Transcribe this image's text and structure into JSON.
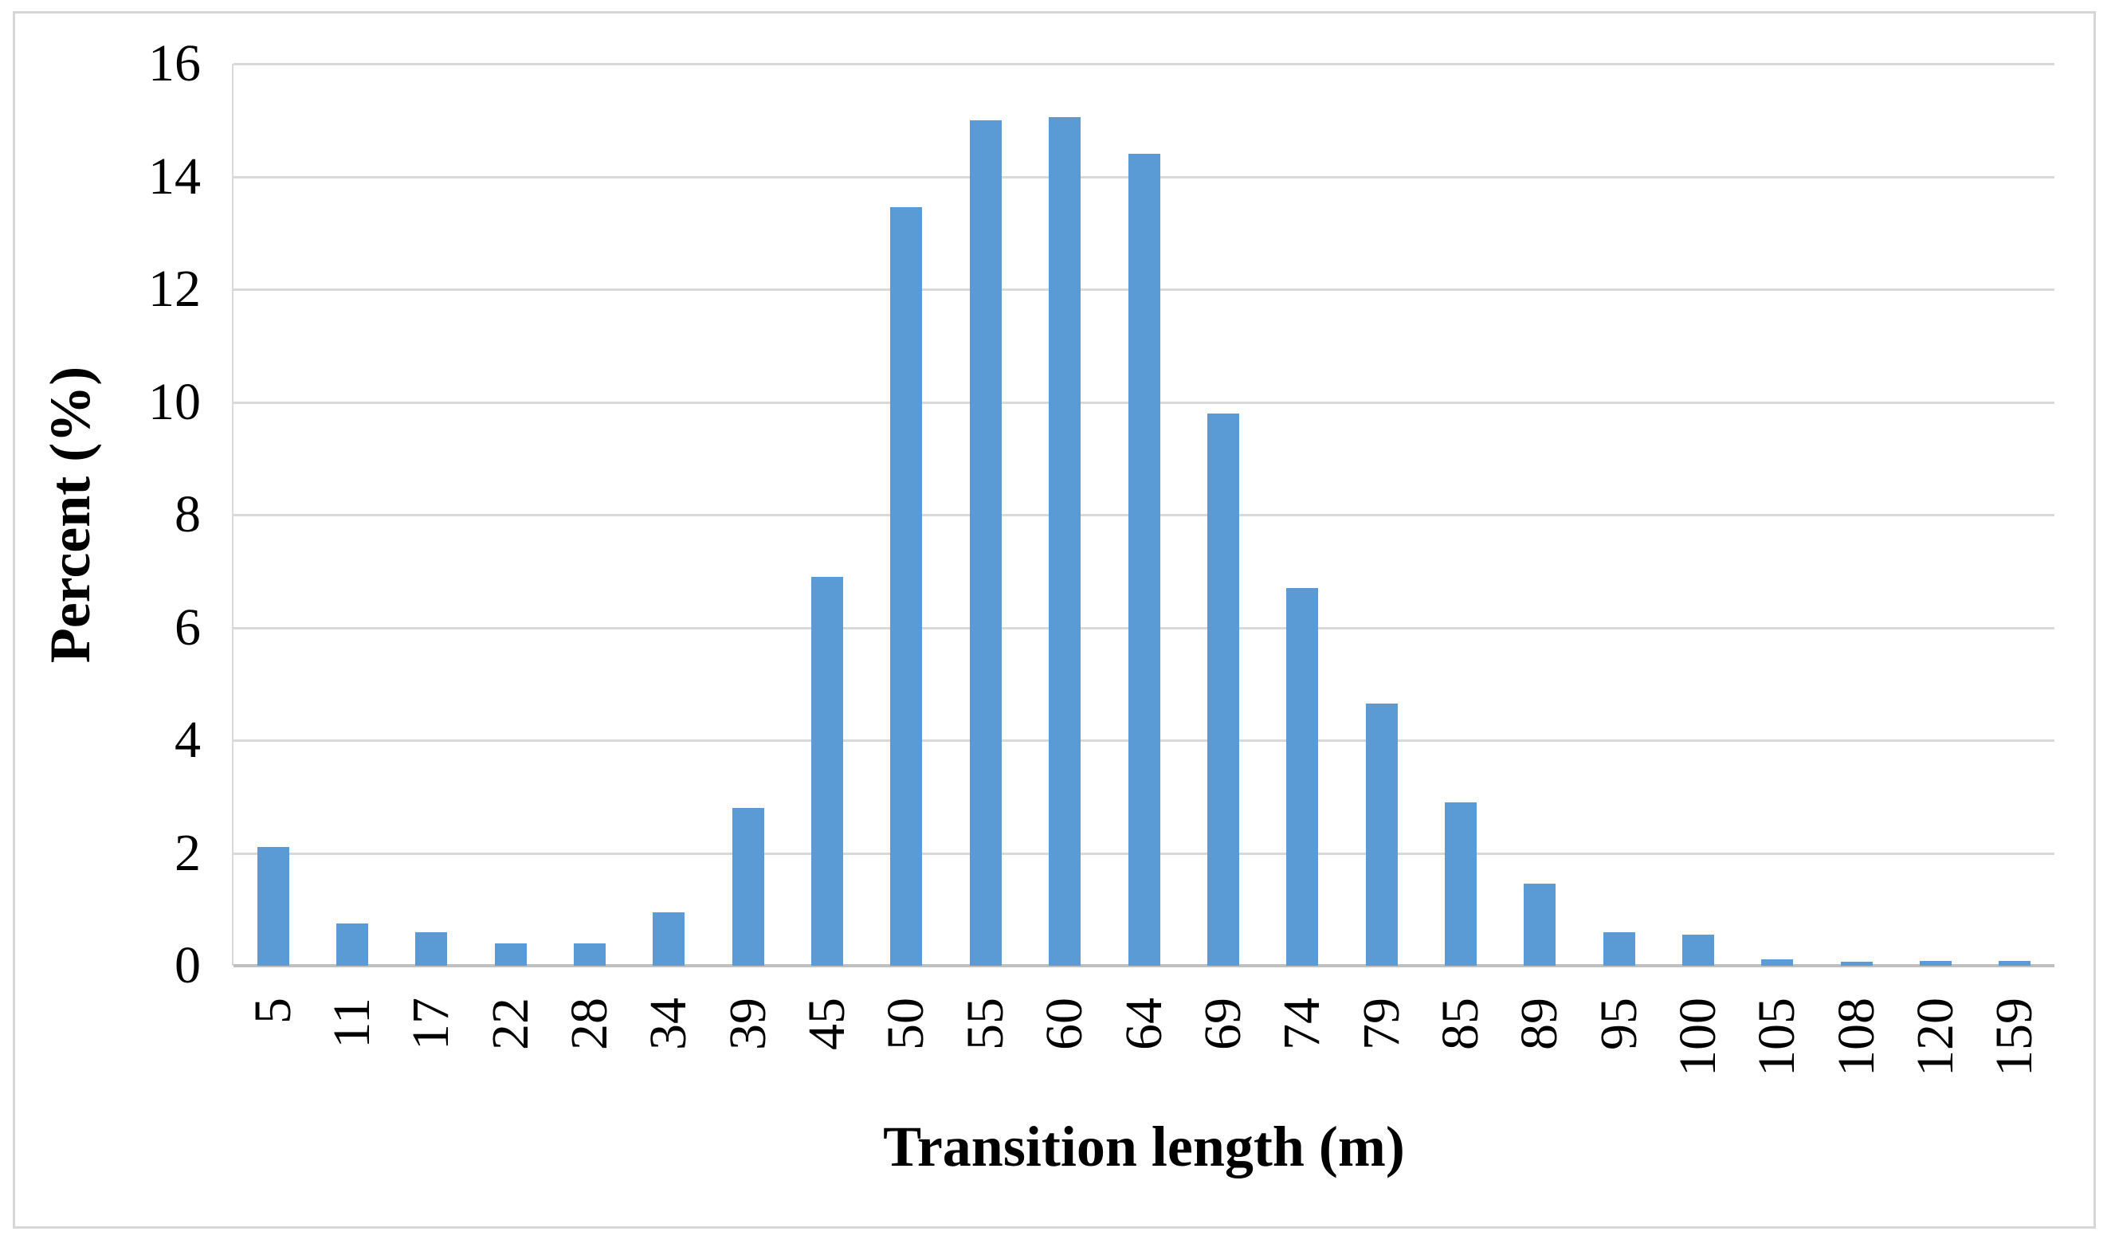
{
  "figure": {
    "background": "#ffffff",
    "border_color": "#d6d6d6"
  },
  "chart_data": {
    "type": "bar",
    "title": "",
    "categories": [
      "5",
      "11",
      "17",
      "22",
      "28",
      "34",
      "39",
      "45",
      "50",
      "55",
      "60",
      "64",
      "69",
      "74",
      "79",
      "85",
      "89",
      "95",
      "100",
      "105",
      "108",
      "120",
      "159"
    ],
    "values": [
      2.1,
      0.75,
      0.6,
      0.4,
      0.4,
      0.95,
      2.8,
      6.9,
      13.45,
      15.0,
      15.05,
      14.4,
      9.8,
      6.7,
      4.65,
      2.9,
      1.45,
      0.6,
      0.55,
      0.12,
      0.07,
      0.08,
      0.08
    ],
    "xlabel": "Transition length (m)",
    "ylabel": "Percent (%)",
    "ylim": [
      0,
      16
    ],
    "yticks": [
      0,
      2,
      4,
      6,
      8,
      10,
      12,
      14,
      16
    ],
    "grid": "horizontal-only",
    "legend": "none",
    "bar_color": "#5b9bd5",
    "gridline_color": "#d9d9d9",
    "axis_baseline_color": "#bfbfbf"
  }
}
